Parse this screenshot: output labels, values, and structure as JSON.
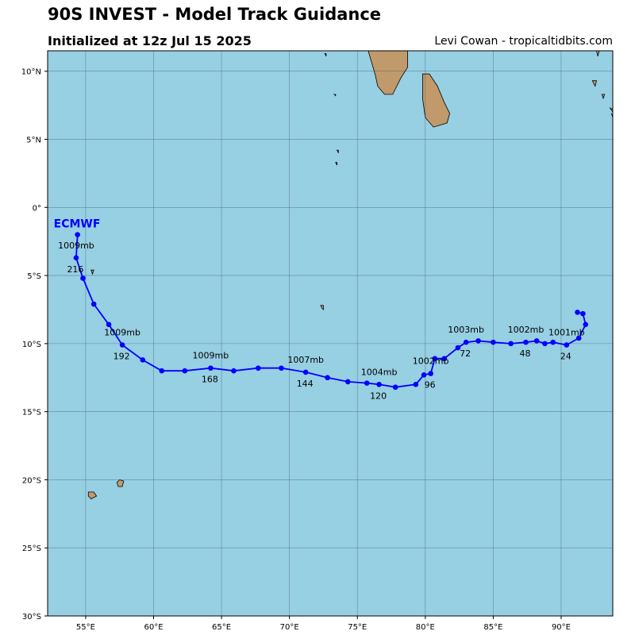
{
  "header": {
    "title": "90S INVEST - Model Track Guidance",
    "subtitle": "Initialized at 12z Jul 15 2025",
    "credit": "Levi Cowan - tropicaltidbits.com"
  },
  "colors": {
    "ocean": "#97cfe3",
    "land": "#c19a6b",
    "track": "#0000ff",
    "grid": "#3c5a64"
  },
  "map_extent": {
    "lon": [
      52.2,
      93.8
    ],
    "lat": [
      -30,
      11.5
    ]
  },
  "axes": {
    "lat_ticks": [
      {
        "value": 10,
        "label": "10°N"
      },
      {
        "value": 5,
        "label": "5°N"
      },
      {
        "value": 0,
        "label": "0°"
      },
      {
        "value": -5,
        "label": "5°S"
      },
      {
        "value": -10,
        "label": "10°S"
      },
      {
        "value": -15,
        "label": "15°S"
      },
      {
        "value": -20,
        "label": "20°S"
      },
      {
        "value": -25,
        "label": "25°S"
      },
      {
        "value": -30,
        "label": "30°S"
      }
    ],
    "lon_ticks": [
      {
        "value": 55,
        "label": "55°E"
      },
      {
        "value": 60,
        "label": "60°E"
      },
      {
        "value": 65,
        "label": "65°E"
      },
      {
        "value": 70,
        "label": "70°E"
      },
      {
        "value": 75,
        "label": "75°E"
      },
      {
        "value": 80,
        "label": "80°E"
      },
      {
        "value": 85,
        "label": "85°E"
      },
      {
        "value": 90,
        "label": "90°E"
      }
    ]
  },
  "track": {
    "model": "ECMWF",
    "points": [
      {
        "lon": 91.2,
        "lat": -7.7
      },
      {
        "lon": 91.6,
        "lat": -7.8
      },
      {
        "lon": 91.8,
        "lat": -8.6
      },
      {
        "lon": 91.3,
        "lat": -9.6
      },
      {
        "lon": 90.4,
        "lat": -10.1
      },
      {
        "lon": 89.4,
        "lat": -9.9
      },
      {
        "lon": 88.8,
        "lat": -10.0
      },
      {
        "lon": 88.2,
        "lat": -9.8
      },
      {
        "lon": 87.4,
        "lat": -9.9
      },
      {
        "lon": 86.3,
        "lat": -10.0
      },
      {
        "lon": 85.0,
        "lat": -9.9
      },
      {
        "lon": 83.9,
        "lat": -9.8
      },
      {
        "lon": 83.0,
        "lat": -9.9
      },
      {
        "lon": 82.4,
        "lat": -10.3
      },
      {
        "lon": 81.4,
        "lat": -11.1
      },
      {
        "lon": 80.7,
        "lat": -11.1
      },
      {
        "lon": 80.4,
        "lat": -12.2
      },
      {
        "lon": 79.9,
        "lat": -12.3
      },
      {
        "lon": 79.3,
        "lat": -13.0
      },
      {
        "lon": 77.8,
        "lat": -13.2
      },
      {
        "lon": 76.6,
        "lat": -13.0
      },
      {
        "lon": 75.7,
        "lat": -12.9
      },
      {
        "lon": 74.3,
        "lat": -12.8
      },
      {
        "lon": 72.8,
        "lat": -12.5
      },
      {
        "lon": 71.2,
        "lat": -12.1
      },
      {
        "lon": 69.4,
        "lat": -11.8
      },
      {
        "lon": 67.7,
        "lat": -11.8
      },
      {
        "lon": 65.9,
        "lat": -12.0
      },
      {
        "lon": 64.2,
        "lat": -11.8
      },
      {
        "lon": 62.3,
        "lat": -12.0
      },
      {
        "lon": 60.6,
        "lat": -12.0
      },
      {
        "lon": 59.2,
        "lat": -11.2
      },
      {
        "lon": 57.7,
        "lat": -10.1
      },
      {
        "lon": 56.7,
        "lat": -8.6
      },
      {
        "lon": 55.6,
        "lat": -7.1
      },
      {
        "lon": 54.8,
        "lat": -5.2
      },
      {
        "lon": 54.3,
        "lat": -3.7
      },
      {
        "lon": 54.4,
        "lat": -2.0
      }
    ],
    "hour_labels": [
      {
        "text": "24",
        "lon": 90.4,
        "lat": -10.1
      },
      {
        "text": "48",
        "lon": 87.4,
        "lat": -9.9
      },
      {
        "text": "72",
        "lon": 83.0,
        "lat": -9.9
      },
      {
        "text": "96",
        "lon": 80.4,
        "lat": -12.2
      },
      {
        "text": "120",
        "lon": 76.6,
        "lat": -13.0
      },
      {
        "text": "144",
        "lon": 71.2,
        "lat": -12.1
      },
      {
        "text": "168",
        "lon": 64.2,
        "lat": -11.8
      },
      {
        "text": "192",
        "lon": 57.7,
        "lat": -10.1
      },
      {
        "text": "216",
        "lon": 54.3,
        "lat": -3.7
      }
    ],
    "pressure_labels": [
      {
        "text": "1001mb",
        "lon": 90.4,
        "lat": -10.1
      },
      {
        "text": "1002mb",
        "lon": 87.4,
        "lat": -9.9
      },
      {
        "text": "1003mb",
        "lon": 83.0,
        "lat": -9.9
      },
      {
        "text": "1002mb",
        "lon": 80.4,
        "lat": -12.2
      },
      {
        "text": "1004mb",
        "lon": 76.6,
        "lat": -13.0
      },
      {
        "text": "1007mb",
        "lon": 71.2,
        "lat": -12.1
      },
      {
        "text": "1009mb",
        "lon": 64.2,
        "lat": -11.8
      },
      {
        "text": "1009mb",
        "lon": 57.7,
        "lat": -10.1
      },
      {
        "text": "1009mb",
        "lon": 54.3,
        "lat": -3.7
      }
    ]
  },
  "land": [
    {
      "name": "india",
      "coords": [
        [
          75.8,
          11.5
        ],
        [
          78.7,
          11.5
        ],
        [
          78.7,
          10.3
        ],
        [
          78.2,
          9.5
        ],
        [
          77.6,
          8.3
        ],
        [
          77.0,
          8.3
        ],
        [
          76.5,
          8.9
        ],
        [
          76.3,
          9.8
        ],
        [
          75.8,
          11.5
        ]
      ]
    },
    {
      "name": "sri-lanka",
      "coords": [
        [
          79.8,
          9.8
        ],
        [
          80.3,
          9.8
        ],
        [
          80.9,
          8.9
        ],
        [
          81.4,
          7.7
        ],
        [
          81.8,
          6.9
        ],
        [
          81.6,
          6.2
        ],
        [
          80.6,
          5.9
        ],
        [
          80.0,
          6.6
        ],
        [
          79.8,
          8.0
        ],
        [
          79.8,
          9.8
        ]
      ]
    },
    {
      "name": "reunion",
      "coords": [
        [
          55.2,
          -20.9
        ],
        [
          55.6,
          -20.9
        ],
        [
          55.8,
          -21.2
        ],
        [
          55.4,
          -21.4
        ],
        [
          55.2,
          -21.2
        ],
        [
          55.2,
          -20.9
        ]
      ]
    },
    {
      "name": "mauritius",
      "coords": [
        [
          57.5,
          -20.0
        ],
        [
          57.8,
          -20.1
        ],
        [
          57.7,
          -20.5
        ],
        [
          57.4,
          -20.5
        ],
        [
          57.3,
          -20.2
        ],
        [
          57.5,
          -20.0
        ]
      ]
    },
    {
      "name": "maldives-1",
      "coords": [
        [
          72.6,
          11.3
        ],
        [
          72.7,
          11.3
        ],
        [
          72.7,
          11.1
        ],
        [
          72.6,
          11.3
        ]
      ]
    },
    {
      "name": "maldives-2",
      "coords": [
        [
          73.3,
          8.3
        ],
        [
          73.4,
          8.3
        ],
        [
          73.4,
          8.2
        ],
        [
          73.3,
          8.3
        ]
      ]
    },
    {
      "name": "maldives-3",
      "coords": [
        [
          73.5,
          4.2
        ],
        [
          73.6,
          4.2
        ],
        [
          73.6,
          4.0
        ],
        [
          73.5,
          4.2
        ]
      ]
    },
    {
      "name": "maldives-4",
      "coords": [
        [
          73.4,
          3.3
        ],
        [
          73.5,
          3.3
        ],
        [
          73.5,
          3.1
        ],
        [
          73.4,
          3.3
        ]
      ]
    },
    {
      "name": "seychelles-atoll",
      "coords": [
        [
          55.4,
          -4.6
        ],
        [
          55.6,
          -4.6
        ],
        [
          55.5,
          -4.9
        ],
        [
          55.4,
          -4.6
        ]
      ]
    },
    {
      "name": "chagos",
      "coords": [
        [
          72.3,
          -7.2
        ],
        [
          72.5,
          -7.2
        ],
        [
          72.5,
          -7.5
        ],
        [
          72.4,
          -7.4
        ],
        [
          72.3,
          -7.2
        ]
      ]
    },
    {
      "name": "andaman-1",
      "coords": [
        [
          92.6,
          11.5
        ],
        [
          92.8,
          11.5
        ],
        [
          92.7,
          11.1
        ],
        [
          92.6,
          11.5
        ]
      ]
    },
    {
      "name": "andaman-2",
      "coords": [
        [
          92.3,
          9.3
        ],
        [
          92.6,
          9.3
        ],
        [
          92.5,
          8.9
        ],
        [
          92.3,
          9.3
        ]
      ]
    },
    {
      "name": "nicobar-1",
      "coords": [
        [
          93.0,
          8.3
        ],
        [
          93.2,
          8.3
        ],
        [
          93.1,
          8.0
        ],
        [
          93.0,
          8.3
        ]
      ]
    },
    {
      "name": "nicobar-2",
      "coords": [
        [
          93.6,
          7.3
        ],
        [
          93.8,
          7.2
        ],
        [
          93.8,
          7.0
        ],
        [
          93.6,
          7.3
        ]
      ]
    },
    {
      "name": "nicobar-3",
      "coords": [
        [
          93.7,
          6.9
        ],
        [
          93.8,
          6.6
        ],
        [
          93.9,
          6.4
        ],
        [
          93.7,
          6.9
        ]
      ]
    }
  ]
}
